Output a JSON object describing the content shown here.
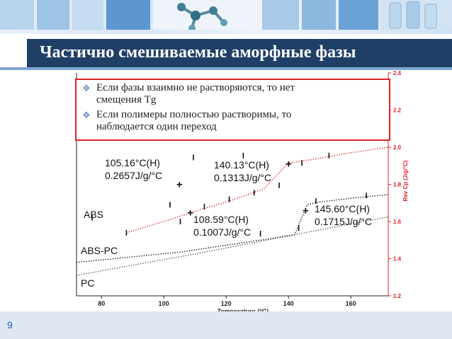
{
  "title": "Частично смешиваемые аморфные фазы",
  "page_number": "9",
  "bullets": [
    {
      "icon": "diamond-bullet-icon",
      "text_line1": "Если фазы взаимно не растворяются, то нет",
      "text_line2": "смещения Tg"
    },
    {
      "icon": "diamond-bullet-icon",
      "text_line1": "Если полимеры полностью растворимы, то",
      "text_line2": "наблюдается один переход"
    }
  ],
  "chart_data": {
    "type": "line",
    "xlabel": "Temperature (°C)",
    "ylabel": "Rev Cp (J/g/°C)",
    "xlim": [
      72,
      172
    ],
    "ylim": [
      1.2,
      2.4
    ],
    "x_ticks": [
      80,
      100,
      120,
      140,
      160
    ],
    "y_ticks": [
      1.2,
      1.4,
      1.6,
      1.8,
      2.0,
      2.2,
      2.4
    ],
    "colors": {
      "axis": "#e0202a",
      "abs": "#d9302c",
      "abs_pc": "#111111",
      "pc": "#444444"
    },
    "series": [
      {
        "name": "ABS",
        "x": [
          88,
          100,
          110,
          120,
          126,
          132,
          140,
          148,
          158,
          172
        ],
        "y": [
          1.54,
          1.6,
          1.655,
          1.705,
          1.74,
          1.775,
          1.915,
          1.935,
          1.965,
          2.0
        ]
      },
      {
        "name": "ABS-PC",
        "x": [
          72,
          90,
          105,
          115,
          125,
          135,
          142,
          146,
          150,
          160,
          172
        ],
        "y": [
          1.38,
          1.41,
          1.435,
          1.46,
          1.485,
          1.51,
          1.53,
          1.69,
          1.705,
          1.725,
          1.745
        ]
      },
      {
        "name": "PC",
        "x": [
          72,
          90,
          110,
          130,
          150,
          172
        ],
        "y": [
          1.31,
          1.365,
          1.425,
          1.49,
          1.555,
          1.625
        ]
      }
    ],
    "annotations": [
      {
        "temp": "105.16°C(H)",
        "cp": "0.2657J/g/°C"
      },
      {
        "temp": "140.13°C(H)",
        "cp": "0.1313J/g/°C"
      },
      {
        "temp": "108.59°C(H)",
        "cp": "0.1007J/g/°C"
      },
      {
        "temp": "145.60°C(H)",
        "cp": "0.1715J/g/°C"
      }
    ],
    "markers": [
      {
        "x": 105,
        "y": 1.8
      },
      {
        "x": 140,
        "y": 1.91
      },
      {
        "x": 108.5,
        "y": 1.647
      },
      {
        "x": 145.5,
        "y": 1.66
      }
    ],
    "onset_ticks": [
      {
        "x": 77,
        "y": 1.62
      },
      {
        "x": 88,
        "y": 1.54
      },
      {
        "x": 102,
        "y": 1.69
      },
      {
        "x": 105.3,
        "y": 1.6
      },
      {
        "x": 109.5,
        "y": 1.945
      },
      {
        "x": 113,
        "y": 1.68
      },
      {
        "x": 121,
        "y": 1.72
      },
      {
        "x": 125.5,
        "y": 1.955
      },
      {
        "x": 129,
        "y": 1.755
      },
      {
        "x": 131,
        "y": 1.535
      },
      {
        "x": 137,
        "y": 1.795
      },
      {
        "x": 143.3,
        "y": 1.565
      },
      {
        "x": 144.3,
        "y": 1.915
      },
      {
        "x": 148.8,
        "y": 1.71
      },
      {
        "x": 153,
        "y": 1.955
      },
      {
        "x": 165,
        "y": 1.74
      }
    ]
  }
}
